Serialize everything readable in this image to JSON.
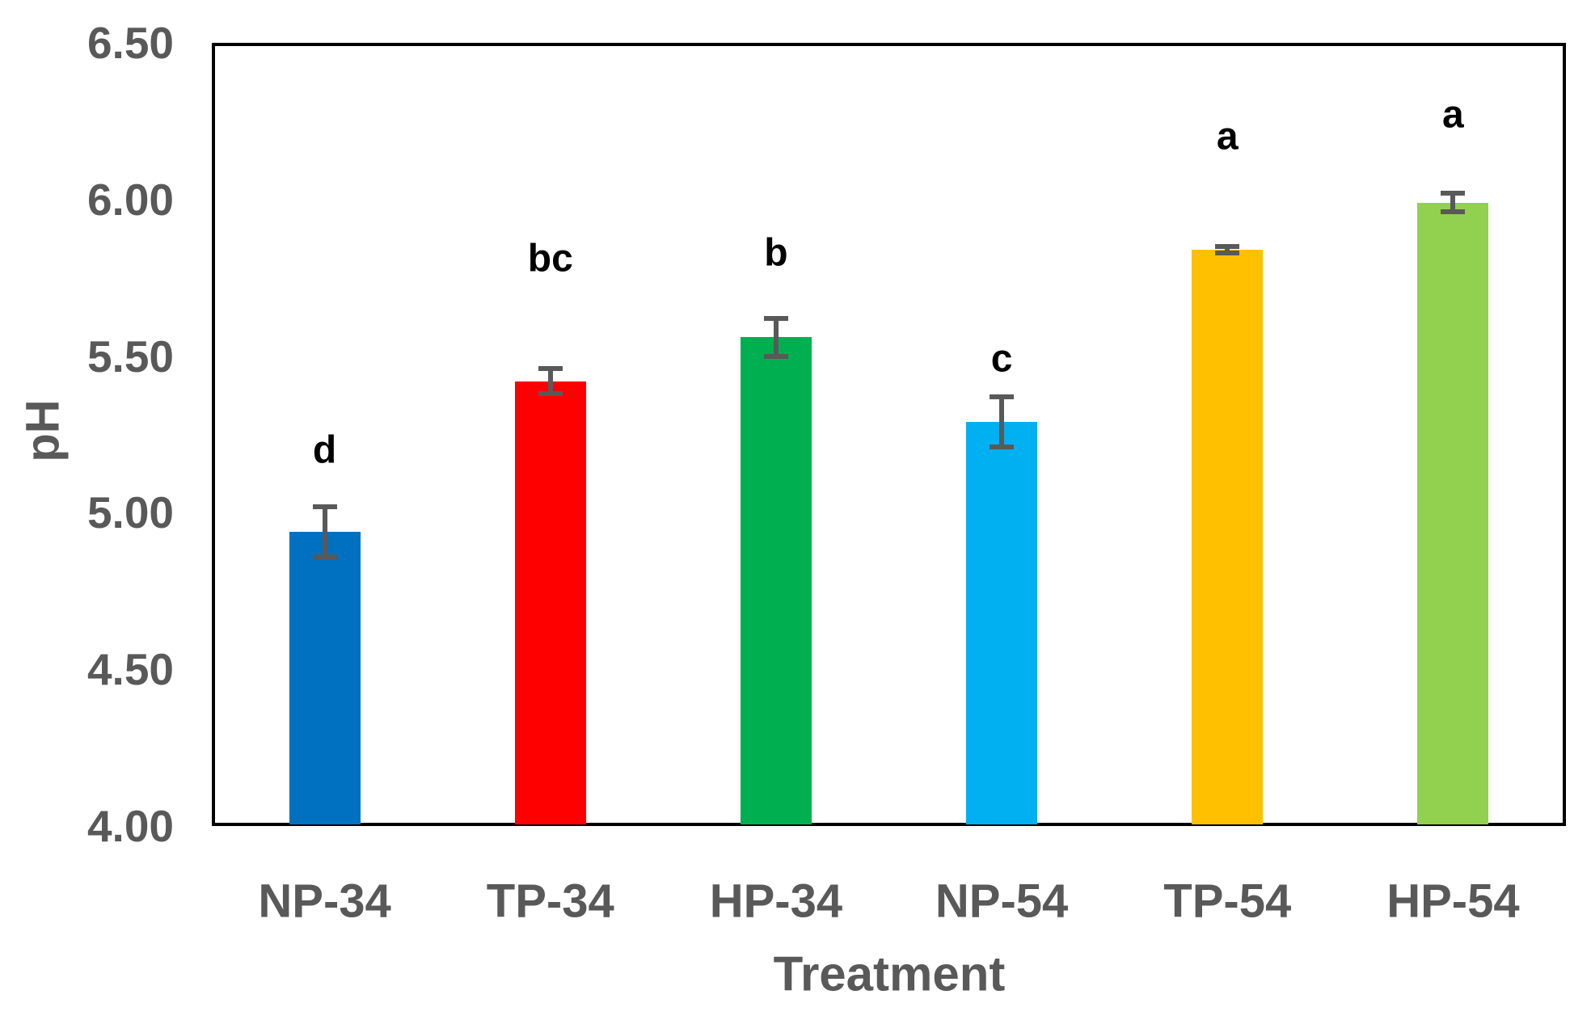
{
  "chart_data": {
    "type": "bar",
    "title": "",
    "xlabel": "Treatment",
    "ylabel": "pH",
    "ylim": [
      4.0,
      6.5
    ],
    "ytick_values": [
      4.0,
      4.5,
      5.0,
      5.5,
      6.0,
      6.5
    ],
    "ytick_labels": [
      "4.00",
      "4.50",
      "5.00",
      "5.50",
      "6.00",
      "6.50"
    ],
    "grid": false,
    "legend": "none",
    "categories": [
      "NP-34",
      "TP-34",
      "HP-34",
      "NP-54",
      "TP-54",
      "HP-54"
    ],
    "values": [
      4.94,
      5.42,
      5.56,
      5.29,
      5.84,
      5.99
    ],
    "error_bars": [
      0.08,
      0.04,
      0.06,
      0.08,
      0.01,
      0.03
    ],
    "bar_colors": [
      "#0070C0",
      "#FF0000",
      "#00B050",
      "#00B0F0",
      "#FFC000",
      "#92D050"
    ],
    "sig_letters": [
      "d",
      "bc",
      "b",
      "c",
      "a",
      "a"
    ],
    "sig_letter_y": [
      5.2,
      5.81,
      5.83,
      5.49,
      6.2,
      6.27
    ],
    "colors": {
      "axis_border": "#000000",
      "text": "#595959",
      "error_bar": "#595959",
      "sig_letter": "#000000",
      "background": "#FFFFFF"
    }
  }
}
